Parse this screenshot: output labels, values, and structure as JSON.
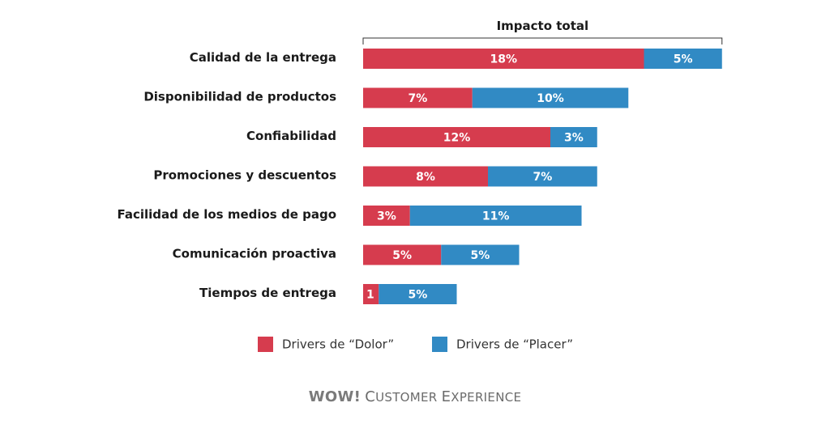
{
  "chart_data": {
    "type": "bar",
    "orientation": "horizontal",
    "stacked": true,
    "title": "Impacto total",
    "categories": [
      "Calidad de la entrega",
      "Disponibilidad de productos",
      "Confiabilidad",
      "Promociones y descuentos",
      "Facilidad de los medios de pago",
      "Comunicación proactiva",
      "Tiempos de entrega"
    ],
    "series": [
      {
        "name": "Drivers de “Dolor”",
        "color": "#d63c4e",
        "values": [
          18,
          7,
          12,
          8,
          3,
          5,
          1
        ],
        "labels": [
          "18%",
          "7%",
          "12%",
          "8%",
          "3%",
          "5%",
          "1"
        ]
      },
      {
        "name": "Drivers de “Placer”",
        "color": "#318ac4",
        "values": [
          5,
          10,
          3,
          7,
          11,
          5,
          5
        ],
        "labels": [
          "5%",
          "10%",
          "3%",
          "7%",
          "11%",
          "5%",
          "5%"
        ]
      }
    ],
    "xlim": [
      0,
      23
    ],
    "grid": false,
    "legend": "bottom-center"
  },
  "brand": {
    "wow": "WOW!",
    "c": "C",
    "ustomer": "USTOMER ",
    "e": "E",
    "xperience": "XPERIENCE"
  }
}
